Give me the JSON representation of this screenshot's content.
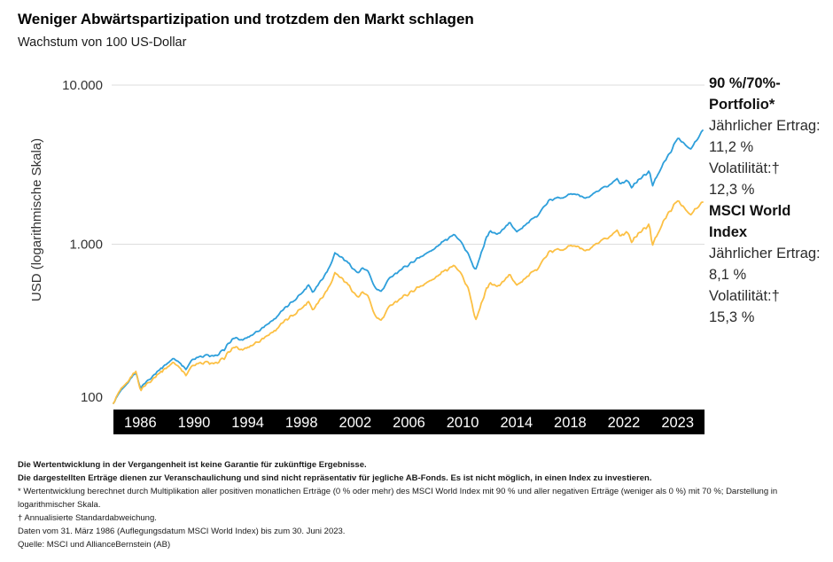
{
  "page": {
    "title": "Weniger Abwärtspartizipation und trotzdem den Markt schlagen",
    "subtitle": "Wachstum von 100 US-Dollar"
  },
  "legend": {
    "items": [
      {
        "name": "90 %/70%-Portfolio*",
        "return_line": "Jährlicher Ertrag: 11,2 %",
        "vol_label": "Volatilität:†",
        "vol_value": "12,3 %"
      },
      {
        "name": "MSCI World Index",
        "return_line": "Jährlicher Ertrag: 8,1 %",
        "vol_label": "Volatilität:†",
        "vol_value": "15,3 %"
      }
    ]
  },
  "footnotes": [
    {
      "bold": true,
      "text": "Die Wertentwicklung in der Vergangenheit ist keine Garantie für zukünftige Ergebnisse."
    },
    {
      "bold": true,
      "text": "Die dargestellten Erträge dienen zur Veranschaulichung und sind nicht repräsentativ für jegliche AB-Fonds. Es ist nicht möglich, in einen Index zu investieren."
    },
    {
      "bold": false,
      "text": "* Wertentwicklung berechnet durch Multiplikation aller positiven monatlichen Erträge (0 % oder mehr) des MSCI World Index mit 90 % und aller negativen Erträge (weniger als 0 %) mit 70 %; Darstellung in logarithmischer Skala."
    },
    {
      "bold": false,
      "text": "† Annualisierte Standardabweichung."
    },
    {
      "bold": false,
      "text": "Daten vom 31. März 1986 (Auflegungsdatum MSCI World Index) bis zum 30. Juni 2023."
    },
    {
      "bold": false,
      "text": "Quelle: MSCI und AllianceBernstein (AB)"
    }
  ],
  "chart_data": {
    "type": "line",
    "title": "Weniger Abwärtspartizipation und trotzdem den Markt schlagen",
    "subtitle": "Wachstum von 100 US-Dollar",
    "ylabel": "USD (logarithmische Skala)",
    "log_scale": true,
    "grid": "horizontal",
    "ylim": [
      100,
      10000
    ],
    "y_ticks": [
      "10.000",
      "1.000",
      "100"
    ],
    "y_tick_values": [
      10000,
      1000,
      100
    ],
    "x_range": [
      1986.25,
      2023.5
    ],
    "x_tick_labels": [
      "1986",
      "1990",
      "1994",
      "1998",
      "2002",
      "2006",
      "2010",
      "2014",
      "2018",
      "2022",
      "2023"
    ],
    "colors": {
      "portfolio": "#2E9FDB",
      "msci": "#FCC044",
      "band": "#000000",
      "gridline": "#dddddd"
    },
    "legend_position": "right",
    "series": [
      {
        "name": "90 %/70%-Portfolio*",
        "color": "#2E9FDB",
        "annual_return_pct": 11.2,
        "volatility_pct": 12.3,
        "start_value": 100,
        "end_value": 5200,
        "anchors": [
          [
            1986.25,
            100
          ],
          [
            1986.6,
            115
          ],
          [
            1987.0,
            127
          ],
          [
            1987.3,
            141
          ],
          [
            1987.65,
            158
          ],
          [
            1987.95,
            125
          ],
          [
            1988.4,
            139
          ],
          [
            1989.0,
            158
          ],
          [
            1989.6,
            177
          ],
          [
            1990.05,
            191
          ],
          [
            1990.45,
            182
          ],
          [
            1990.8,
            164
          ],
          [
            1991.25,
            188
          ],
          [
            1991.8,
            196
          ],
          [
            1992.3,
            201
          ],
          [
            1992.8,
            197
          ],
          [
            1993.3,
            222
          ],
          [
            1993.85,
            258
          ],
          [
            1994.35,
            249
          ],
          [
            1995.0,
            269
          ],
          [
            1995.7,
            300
          ],
          [
            1996.4,
            338
          ],
          [
            1997.1,
            395
          ],
          [
            1997.8,
            458
          ],
          [
            1998.25,
            505
          ],
          [
            1998.6,
            560
          ],
          [
            1998.85,
            500
          ],
          [
            1999.3,
            580
          ],
          [
            1999.8,
            685
          ],
          [
            2000.25,
            880
          ],
          [
            2000.7,
            825
          ],
          [
            2001.2,
            745
          ],
          [
            2001.7,
            655
          ],
          [
            2001.95,
            705
          ],
          [
            2002.3,
            680
          ],
          [
            2002.85,
            520
          ],
          [
            2003.2,
            505
          ],
          [
            2003.8,
            630
          ],
          [
            2004.5,
            700
          ],
          [
            2005.2,
            780
          ],
          [
            2005.9,
            865
          ],
          [
            2006.35,
            905
          ],
          [
            2007.0,
            1020
          ],
          [
            2007.8,
            1170
          ],
          [
            2008.2,
            1040
          ],
          [
            2008.7,
            860
          ],
          [
            2008.95,
            730
          ],
          [
            2009.17,
            690
          ],
          [
            2009.8,
            1090
          ],
          [
            2010.05,
            1210
          ],
          [
            2010.5,
            1150
          ],
          [
            2011.3,
            1360
          ],
          [
            2011.75,
            1210
          ],
          [
            2012.05,
            1265
          ],
          [
            2012.9,
            1470
          ],
          [
            2013.8,
            1880
          ],
          [
            2014.8,
            2010
          ],
          [
            2015.4,
            2090
          ],
          [
            2016.12,
            1930
          ],
          [
            2016.65,
            2070
          ],
          [
            2017.8,
            2430
          ],
          [
            2018.07,
            2590
          ],
          [
            2018.3,
            2420
          ],
          [
            2018.8,
            2530
          ],
          [
            2019.0,
            2270
          ],
          [
            2019.5,
            2560
          ],
          [
            2020.12,
            2870
          ],
          [
            2020.32,
            2330
          ],
          [
            2020.6,
            2700
          ],
          [
            2021.0,
            3200
          ],
          [
            2021.4,
            3700
          ],
          [
            2021.95,
            4700
          ],
          [
            2022.3,
            4300
          ],
          [
            2022.55,
            4050
          ],
          [
            2022.78,
            3950
          ],
          [
            2023.0,
            4350
          ],
          [
            2023.2,
            4600
          ],
          [
            2023.5,
            5200
          ]
        ]
      },
      {
        "name": "MSCI World Index",
        "color": "#FCC044",
        "annual_return_pct": 8.1,
        "volatility_pct": 15.3,
        "start_value": 100,
        "end_value": 1840,
        "anchors": [
          [
            1986.25,
            100
          ],
          [
            1986.6,
            117
          ],
          [
            1987.0,
            129
          ],
          [
            1987.3,
            143
          ],
          [
            1987.65,
            162
          ],
          [
            1987.95,
            121
          ],
          [
            1988.4,
            134
          ],
          [
            1989.0,
            151
          ],
          [
            1989.6,
            168
          ],
          [
            1990.05,
            180
          ],
          [
            1990.45,
            170
          ],
          [
            1990.8,
            151
          ],
          [
            1991.25,
            172
          ],
          [
            1991.8,
            178
          ],
          [
            1992.3,
            181
          ],
          [
            1992.8,
            176
          ],
          [
            1993.3,
            196
          ],
          [
            1993.85,
            226
          ],
          [
            1994.35,
            216
          ],
          [
            1995.0,
            232
          ],
          [
            1995.7,
            256
          ],
          [
            1996.4,
            285
          ],
          [
            1997.1,
            328
          ],
          [
            1997.8,
            373
          ],
          [
            1998.25,
            405
          ],
          [
            1998.6,
            440
          ],
          [
            1998.85,
            388
          ],
          [
            1999.3,
            448
          ],
          [
            1999.8,
            523
          ],
          [
            2000.25,
            660
          ],
          [
            2000.7,
            610
          ],
          [
            2001.2,
            540
          ],
          [
            2001.7,
            460
          ],
          [
            2001.95,
            498
          ],
          [
            2002.3,
            475
          ],
          [
            2002.85,
            345
          ],
          [
            2003.2,
            332
          ],
          [
            2003.8,
            420
          ],
          [
            2004.5,
            462
          ],
          [
            2005.2,
            512
          ],
          [
            2005.9,
            565
          ],
          [
            2006.35,
            590
          ],
          [
            2007.0,
            660
          ],
          [
            2007.8,
            750
          ],
          [
            2008.2,
            660
          ],
          [
            2008.7,
            520
          ],
          [
            2008.95,
            395
          ],
          [
            2009.17,
            330
          ],
          [
            2009.8,
            520
          ],
          [
            2010.05,
            570
          ],
          [
            2010.5,
            540
          ],
          [
            2011.3,
            640
          ],
          [
            2011.75,
            560
          ],
          [
            2012.05,
            585
          ],
          [
            2012.9,
            680
          ],
          [
            2013.8,
            890
          ],
          [
            2014.8,
            950
          ],
          [
            2015.4,
            990
          ],
          [
            2016.12,
            900
          ],
          [
            2016.65,
            970
          ],
          [
            2017.8,
            1150
          ],
          [
            2018.07,
            1230
          ],
          [
            2018.3,
            1140
          ],
          [
            2018.8,
            1200
          ],
          [
            2019.0,
            1030
          ],
          [
            2019.5,
            1180
          ],
          [
            2020.12,
            1330
          ],
          [
            2020.3,
            980
          ],
          [
            2020.6,
            1150
          ],
          [
            2021.0,
            1380
          ],
          [
            2021.4,
            1600
          ],
          [
            2021.95,
            1900
          ],
          [
            2022.3,
            1700
          ],
          [
            2022.55,
            1580
          ],
          [
            2022.78,
            1520
          ],
          [
            2023.0,
            1650
          ],
          [
            2023.2,
            1700
          ],
          [
            2023.5,
            1840
          ]
        ]
      }
    ]
  }
}
